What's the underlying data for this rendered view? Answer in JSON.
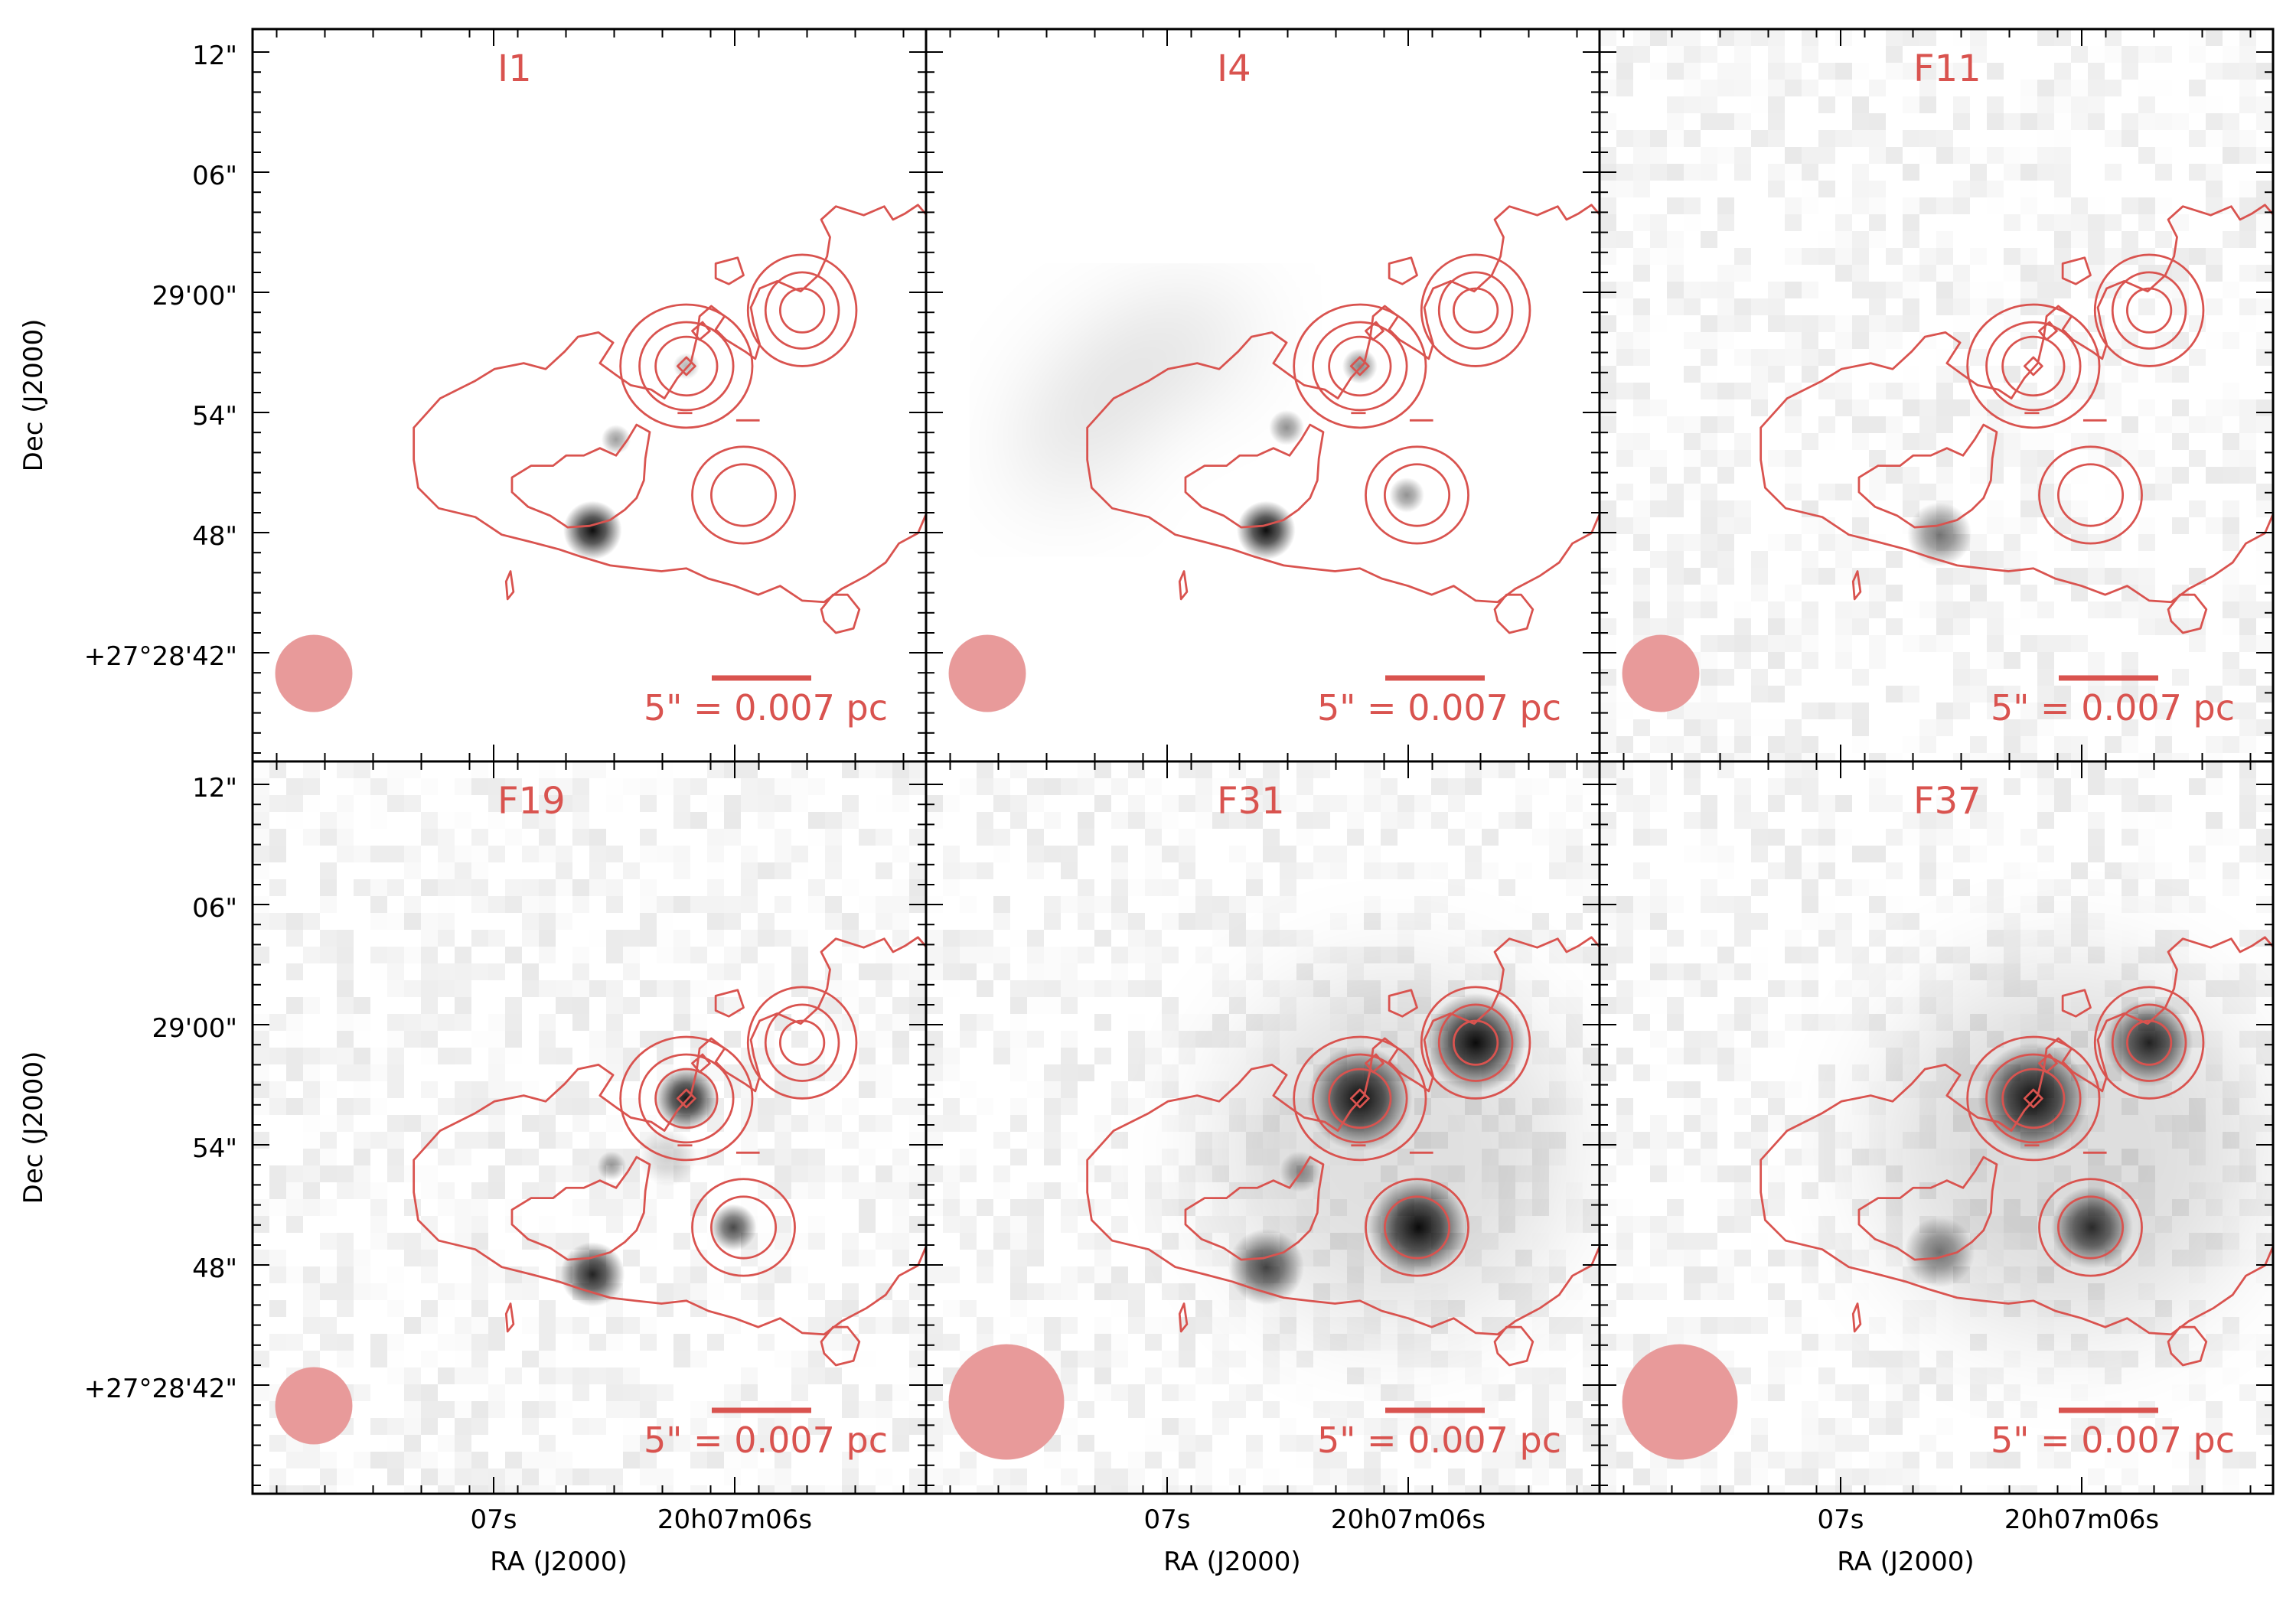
{
  "figure": {
    "axes": {
      "dec_label": "Dec (J2000)",
      "ra_label": "RA (J2000)",
      "dec_ticks": [
        "12\"",
        "06\"",
        "29'00\"",
        "54\"",
        "48\"",
        "+27°28'42\""
      ],
      "ra_ticks": [
        "07s",
        "20h07m06s"
      ]
    },
    "scalebar_label": "5\" = 0.007 pc",
    "colors": {
      "contour": "#d9534f",
      "label": "#d9534f",
      "beam": "#e89a9a",
      "frame": "#000000"
    },
    "panels": [
      {
        "name": "I1",
        "bg": "smooth",
        "beam": "small"
      },
      {
        "name": "I4",
        "bg": "smooth",
        "beam": "small"
      },
      {
        "name": "F11",
        "bg": "noisy",
        "beam": "small"
      },
      {
        "name": "F19",
        "bg": "noisy",
        "beam": "small"
      },
      {
        "name": "F31",
        "bg": "noisy",
        "beam": "large"
      },
      {
        "name": "F37",
        "bg": "noisy",
        "beam": "large"
      }
    ]
  }
}
